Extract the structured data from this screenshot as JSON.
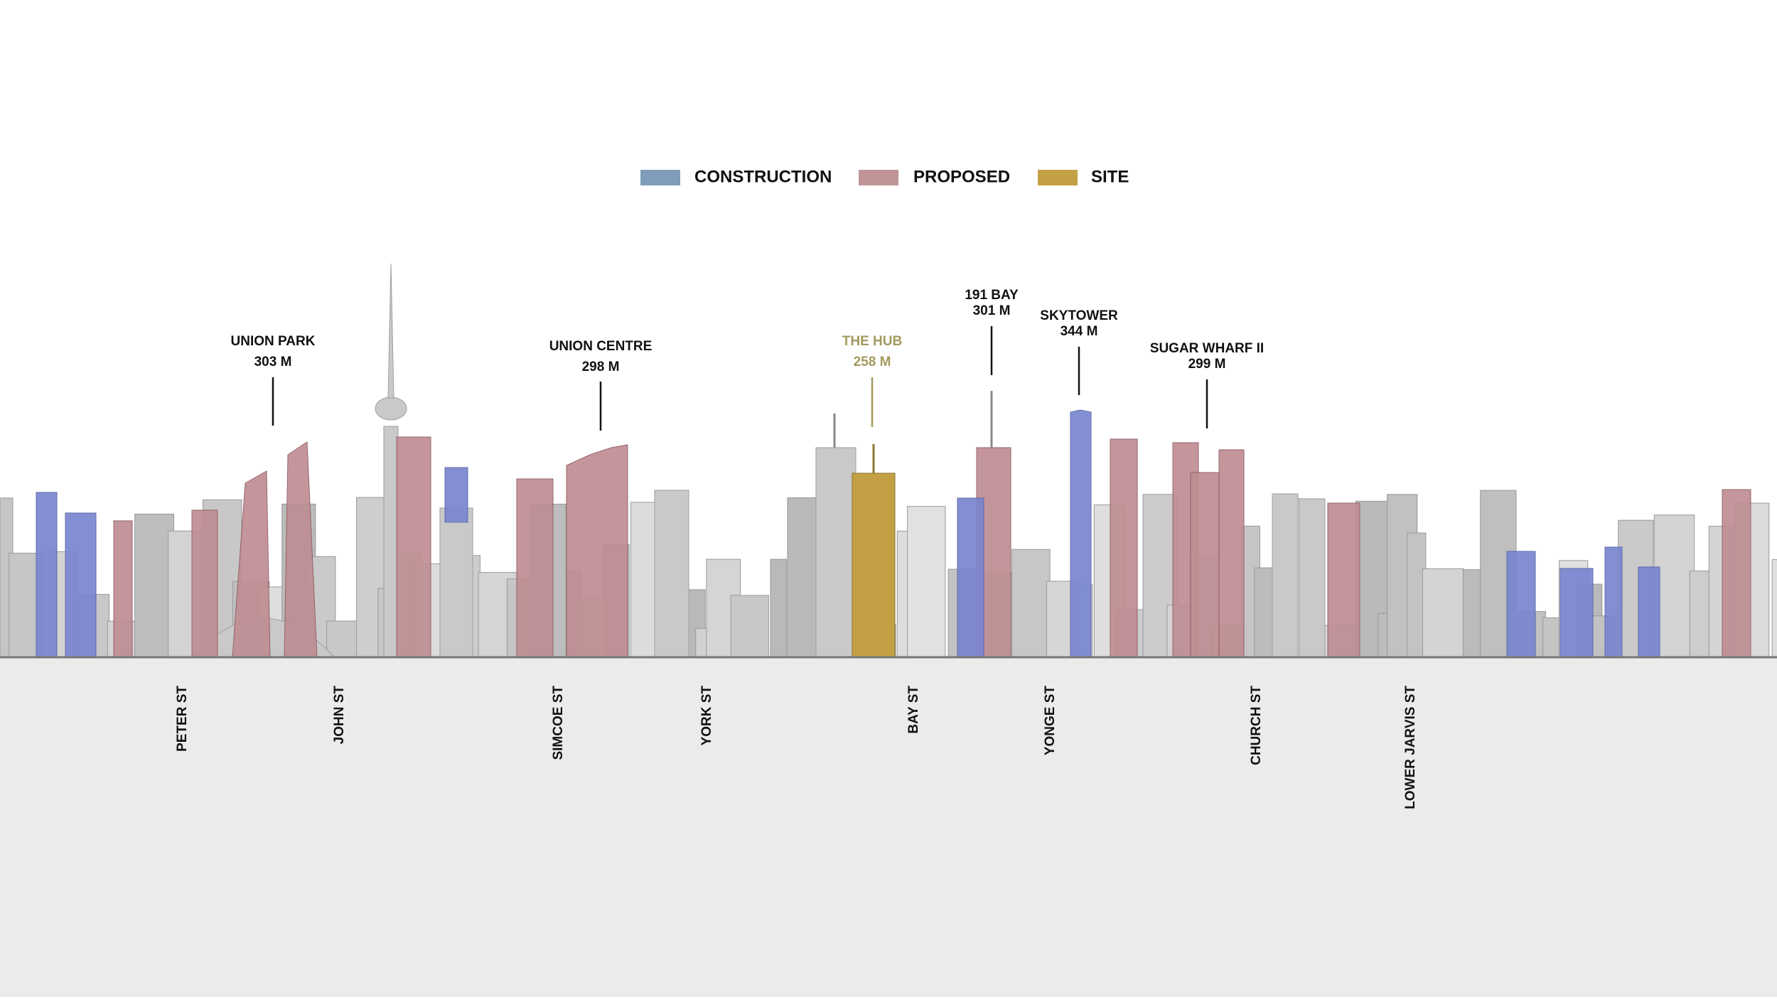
{
  "legend": [
    {
      "label": "CONSTRUCTION",
      "color": "#7f9cba"
    },
    {
      "label": "PROPOSED",
      "color": "#bf9598"
    },
    {
      "label": "SITE",
      "color": "#c4a044"
    }
  ],
  "towers": [
    {
      "name": "UNION PARK",
      "height": "303 M"
    },
    {
      "name": "UNION CENTRE",
      "height": "298 M"
    },
    {
      "name": "THE HUB",
      "height": "258 M"
    },
    {
      "name": "191 BAY",
      "height": "301 M"
    },
    {
      "name": "SKYTOWER",
      "height": "344 M"
    },
    {
      "name": "SUGAR WHARF II",
      "height": "299 M"
    }
  ],
  "streets": [
    "PETER ST",
    "JOHN ST",
    "SIMCOE ST",
    "YORK ST",
    "BAY ST",
    "YONGE ST",
    "CHURCH ST",
    "LOWER JARVIS ST"
  ]
}
